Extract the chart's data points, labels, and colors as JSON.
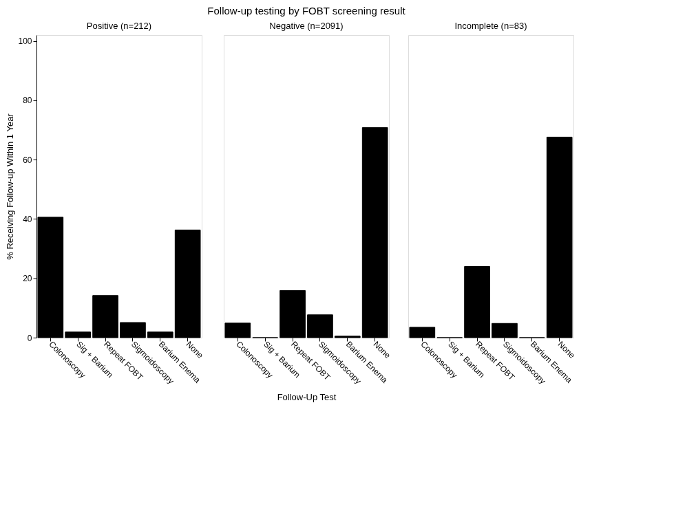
{
  "chart_data": [
    {
      "type": "bar",
      "subtitle": "Positive (n=212)",
      "ylabel": "% Receiving Follow-up Within 1 Year",
      "categories": [
        "Colonoscopy",
        "Sig + Barium",
        "Repeat FOBT",
        "Sigmoidoscopy",
        "Barium Enema",
        "None"
      ],
      "values": [
        40.6,
        1.9,
        14.2,
        5.1,
        1.9,
        36.3
      ],
      "color": "#000000",
      "ylim": [
        0,
        102
      ],
      "yticks": [
        0,
        20,
        40,
        60,
        80,
        100
      ],
      "grid": false
    },
    {
      "type": "bar",
      "title": "Follow-up testing by FOBT screening result",
      "subtitle": "Negative (n=2091)",
      "xlabel": "Follow-Up Test",
      "categories": [
        "Colonoscopy",
        "Sig + Barium",
        "Repeat FOBT",
        "Sigmoidoscopy",
        "Barium Enema",
        "None"
      ],
      "values": [
        4.9,
        0,
        15.9,
        7.7,
        0.5,
        70.8
      ],
      "color": "#000000",
      "ylim": [
        0,
        102
      ],
      "yticks": [
        0,
        20,
        40,
        60,
        80,
        100
      ],
      "grid": false,
      "tick_labels": "x"
    },
    {
      "type": "bar",
      "subtitle": "Incomplete (n=83)",
      "categories": [
        "Colonoscopy",
        "Sig + Barium",
        "Repeat FOBT",
        "Sigmoidoscopy",
        "Barium Enema",
        "None"
      ],
      "values": [
        3.5,
        0,
        24.0,
        4.8,
        0,
        67.6
      ],
      "color": "#000000",
      "ylim": [
        0,
        102
      ],
      "yticks": [
        0,
        20,
        40,
        60,
        80,
        100
      ],
      "grid": false,
      "tick_labels": "x"
    }
  ]
}
